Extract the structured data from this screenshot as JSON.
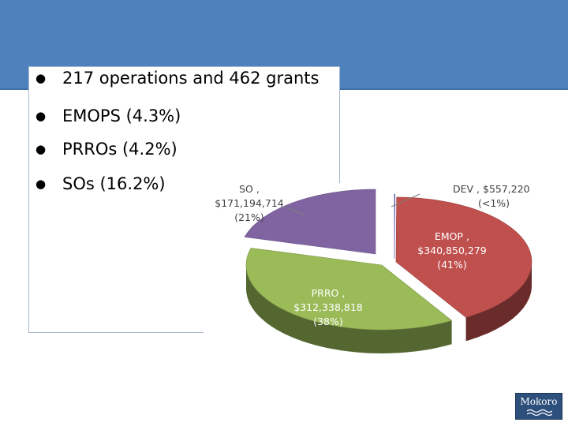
{
  "slide": {
    "bullets": [
      "217 operations and 462 grants",
      "EMOPS (4.3%)",
      "PRROs (4.2%)",
      "SOs (16.2%)"
    ],
    "logo_text": "Mokoro"
  },
  "chart_data": {
    "type": "pie",
    "title": "",
    "style": "3d-exploded",
    "slices": [
      {
        "name": "DEV",
        "value": 557220,
        "value_label": "$557,220",
        "percent_label": "(<1%)",
        "color": "#6a5acd"
      },
      {
        "name": "EMOP",
        "value": 340850279,
        "value_label": "$340,850,279",
        "percent_label": "(41%)",
        "color": "#c0504d"
      },
      {
        "name": "PRRO",
        "value": 312338818,
        "value_label": "$312,338,818",
        "percent_label": "(38%)",
        "color": "#9bbb59"
      },
      {
        "name": "SO",
        "value": 171194714,
        "value_label": "$171,194,714",
        "percent_label": "(21%)",
        "color": "#8064a2"
      }
    ],
    "label_color": "#ffffff",
    "outside_label_color": "#404040"
  }
}
